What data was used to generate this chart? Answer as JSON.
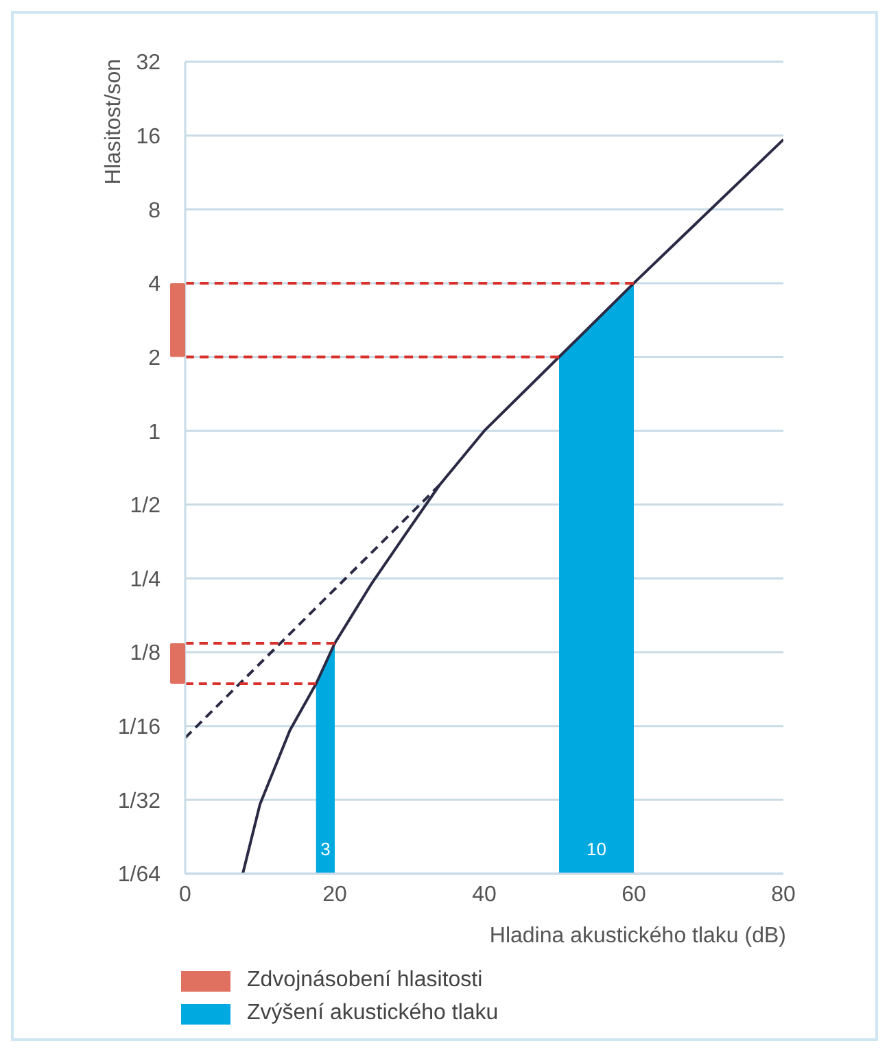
{
  "chart_data": {
    "type": "line",
    "xlabel": "Hladina akustického tlaku (dB)",
    "ylabel": "Hlasitost/son",
    "log": "y",
    "xlim": [
      0,
      80
    ],
    "xticks": [
      0,
      20,
      40,
      60,
      80
    ],
    "ylim": [
      0.015625,
      32
    ],
    "yticks": [
      {
        "value": 0.015625,
        "label": "1/64"
      },
      {
        "value": 0.03125,
        "label": "1/32"
      },
      {
        "value": 0.0625,
        "label": "1/16"
      },
      {
        "value": 0.125,
        "label": "1/8"
      },
      {
        "value": 0.25,
        "label": "1/4"
      },
      {
        "value": 0.5,
        "label": "1/2"
      },
      1,
      2,
      4,
      8,
      16,
      32
    ],
    "grid": true,
    "legend": "bottom",
    "series": [
      {
        "type": "area",
        "name": "Zvýšení akustického tlaku",
        "color": "#00a9e0",
        "x": [
          17.5,
          20,
          35,
          50,
          60
        ],
        "values": [
          0.093,
          0.136,
          null,
          2,
          4
        ]
      },
      {
        "type": "line",
        "color": "#2b2a45",
        "line_style": "solid",
        "x": [
          7.7,
          10,
          14,
          17.5,
          20,
          25,
          30,
          34,
          40,
          50,
          60,
          80
        ],
        "values": [
          0.015625,
          0.03,
          0.06,
          0.093,
          0.136,
          0.24,
          0.4,
          0.6,
          1,
          2,
          4,
          15.4
        ]
      },
      {
        "type": "line",
        "color": "#2b2a45",
        "line_style": "dashed",
        "x": [
          0,
          34
        ],
        "values": [
          0.056,
          0.6
        ]
      },
      {
        "type": "line",
        "color": "#d9302c",
        "line_style": "dashed",
        "x": [
          0,
          60
        ],
        "values": [
          4,
          4
        ]
      },
      {
        "type": "line",
        "color": "#d9302c",
        "line_style": "dashed",
        "x": [
          0,
          50
        ],
        "values": [
          2,
          2
        ]
      },
      {
        "type": "line",
        "color": "#d9302c",
        "line_style": "dashed",
        "x": [
          0,
          20
        ],
        "values": [
          0.136,
          0.136
        ]
      },
      {
        "type": "line",
        "color": "#d9302c",
        "line_style": "dashed",
        "x": [
          0,
          17.5
        ],
        "values": [
          0.093,
          0.093
        ]
      }
    ],
    "annotations": [
      "3",
      "10",
      "Zdvojnásobení hlasitosti"
    ]
  }
}
